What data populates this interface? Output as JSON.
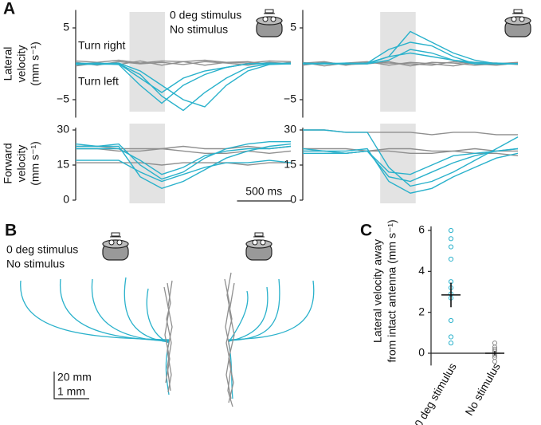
{
  "panel_labels": [
    "A",
    "B",
    "C"
  ],
  "legend": [
    {
      "name": "0 deg stimulus",
      "color": "#29b1cb"
    },
    {
      "name": "No stimulus",
      "color": "#8f8f8f"
    }
  ],
  "annotations": {
    "turn_right": "Turn right",
    "turn_left": "Turn left"
  },
  "y_labels": {
    "lateral": [
      "Lateral",
      "velocity",
      "(mm s⁻¹)"
    ],
    "forward": [
      "Forward",
      "velocity",
      "(mm s⁻¹)"
    ]
  },
  "panel_b": {
    "scale_y": "20 mm",
    "scale_x": "1 mm"
  },
  "chart_data": [
    {
      "type": "line",
      "x": [
        0,
        200,
        400,
        600,
        800,
        1000,
        1200,
        1400,
        1600,
        1800,
        2000
      ],
      "xlim": [
        0,
        2000
      ],
      "ylim": [
        -7.5,
        7.5
      ],
      "yticks": [
        5,
        {
          "value": -5,
          "label": "−5"
        }
      ],
      "shaded_interval": [
        500,
        830
      ],
      "series": [
        {
          "color": "#8f8f8f",
          "values": [
            0.2,
            -0.2,
            0.3,
            0,
            0.2,
            -0.1,
            0.3,
            0.1,
            -0.2,
            0.2,
            0
          ]
        },
        {
          "color": "#8f8f8f",
          "values": [
            -0.3,
            0.1,
            -0.1,
            0.4,
            -0.2,
            0.3,
            -0.2,
            0.2,
            0.3,
            -0.1,
            0.2
          ]
        },
        {
          "color": "#8f8f8f",
          "values": [
            0.4,
            0.2,
            0.5,
            0.1,
            0.4,
            0.3,
            0.5,
            0.2,
            0.1,
            0.4,
            0.3
          ]
        },
        {
          "color": "#29b1cb",
          "values": [
            0,
            0.1,
            0,
            -2,
            -4,
            -2,
            -1,
            -0.5,
            0,
            0.1,
            0
          ]
        },
        {
          "color": "#29b1cb",
          "values": [
            0.1,
            0,
            -0.1,
            -3,
            -5.5,
            -3,
            -1.5,
            -0.5,
            0,
            0,
            0.1
          ]
        },
        {
          "color": "#29b1cb",
          "values": [
            0,
            -0.1,
            0,
            -1.5,
            -4.5,
            -6.5,
            -4,
            -2,
            -0.5,
            0,
            0
          ]
        },
        {
          "color": "#29b1cb",
          "values": [
            -0.1,
            0,
            0.1,
            -1,
            -3,
            -5,
            -6,
            -3,
            -1,
            -0.1,
            0
          ]
        }
      ]
    },
    {
      "type": "line",
      "x": [
        0,
        200,
        400,
        600,
        800,
        1000,
        1200,
        1400,
        1600,
        1800,
        2000
      ],
      "xlim": [
        0,
        2000
      ],
      "ylim": [
        -7.5,
        7.5
      ],
      "yticks": [
        5,
        {
          "value": -5,
          "label": "−5"
        }
      ],
      "shaded_interval": [
        720,
        1050
      ],
      "series": [
        {
          "color": "#8f8f8f",
          "values": [
            0.2,
            -0.3,
            0.1,
            0.3,
            -0.2,
            0.2,
            0,
            -0.3,
            0.2,
            0.1,
            -0.1
          ]
        },
        {
          "color": "#8f8f8f",
          "values": [
            -0.2,
            0.2,
            -0.1,
            0,
            0.3,
            -0.3,
            0.2,
            0.1,
            -0.2,
            0,
            0.2
          ]
        },
        {
          "color": "#8f8f8f",
          "values": [
            0.1,
            0.3,
            -0.2,
            0.2,
            0.1,
            0,
            -0.2,
            0.3,
            0,
            -0.2,
            0.1
          ]
        },
        {
          "color": "#29b1cb",
          "values": [
            0,
            0,
            0.1,
            0,
            1,
            4.5,
            3,
            1.5,
            0.5,
            0,
            0
          ]
        },
        {
          "color": "#29b1cb",
          "values": [
            0,
            0.1,
            0,
            0.1,
            2,
            3,
            2.5,
            1,
            0,
            0,
            0
          ]
        },
        {
          "color": "#29b1cb",
          "values": [
            0.1,
            0,
            0,
            0,
            0.5,
            2,
            1.5,
            0.5,
            0,
            0.1,
            0
          ]
        },
        {
          "color": "#29b1cb",
          "values": [
            0,
            0,
            0,
            0.1,
            1,
            1.5,
            1,
            0.5,
            0.2,
            0,
            0
          ]
        }
      ]
    },
    {
      "type": "line",
      "x": [
        0,
        200,
        400,
        600,
        800,
        1000,
        1200,
        1400,
        1600,
        1800,
        2000
      ],
      "xlim": [
        0,
        2000
      ],
      "ylim": [
        0,
        31
      ],
      "yticks": [
        0,
        15,
        30
      ],
      "shaded_interval": [
        500,
        830
      ],
      "scale_bar": {
        "value": 500,
        "label": "500 ms"
      },
      "series": [
        {
          "color": "#8f8f8f",
          "values": [
            22,
            22,
            21,
            21,
            22,
            21,
            20,
            20,
            21,
            20,
            21
          ]
        },
        {
          "color": "#8f8f8f",
          "values": [
            23,
            23,
            22,
            22,
            22,
            23,
            22,
            22,
            23,
            22,
            23
          ]
        },
        {
          "color": "#8f8f8f",
          "values": [
            16,
            16,
            16,
            16,
            15,
            16,
            16,
            16,
            15,
            16,
            16
          ]
        },
        {
          "color": "#29b1cb",
          "values": [
            23,
            23,
            23,
            10,
            5,
            8,
            13,
            18,
            21,
            23,
            24
          ]
        },
        {
          "color": "#29b1cb",
          "values": [
            24,
            23,
            24,
            15,
            9,
            12,
            18,
            22,
            24,
            25,
            25
          ]
        },
        {
          "color": "#29b1cb",
          "values": [
            17,
            17,
            17,
            12,
            8,
            11,
            14,
            16,
            16,
            17,
            16
          ]
        },
        {
          "color": "#29b1cb",
          "values": [
            22,
            22,
            22,
            17,
            11,
            14,
            19,
            21,
            22,
            22,
            23
          ]
        }
      ]
    },
    {
      "type": "line",
      "x": [
        0,
        200,
        400,
        600,
        800,
        1000,
        1200,
        1400,
        1600,
        1800,
        2000
      ],
      "xlim": [
        0,
        2000
      ],
      "ylim": [
        0,
        31
      ],
      "yticks": [
        0,
        15,
        30
      ],
      "shaded_interval": [
        720,
        1050
      ],
      "series": [
        {
          "color": "#8f8f8f",
          "values": [
            30,
            30,
            29,
            29,
            29,
            29,
            28,
            29,
            29,
            28,
            28
          ]
        },
        {
          "color": "#8f8f8f",
          "values": [
            21,
            21,
            20,
            21,
            21,
            20,
            20,
            21,
            20,
            20,
            19
          ]
        },
        {
          "color": "#8f8f8f",
          "values": [
            22,
            22,
            22,
            21,
            22,
            22,
            21,
            21,
            22,
            21,
            21
          ]
        },
        {
          "color": "#29b1cb",
          "values": [
            22,
            21,
            21,
            22,
            8,
            3,
            5,
            10,
            14,
            18,
            20
          ]
        },
        {
          "color": "#29b1cb",
          "values": [
            30,
            30,
            29,
            29,
            14,
            6,
            8,
            12,
            17,
            22,
            27
          ]
        },
        {
          "color": "#29b1cb",
          "values": [
            21,
            21,
            20,
            21,
            10,
            8,
            12,
            16,
            19,
            21,
            22
          ]
        },
        {
          "color": "#29b1cb",
          "values": [
            20,
            20,
            20,
            21,
            12,
            11,
            15,
            19,
            20,
            21,
            22
          ]
        }
      ]
    },
    {
      "type": "strip",
      "categories": [
        "0 deg stimulus",
        "No stimulus"
      ],
      "ylim": [
        -0.6,
        6.2
      ],
      "yticks": [
        0,
        2,
        4,
        6
      ],
      "series": [
        {
          "color": "#29b1cb",
          "values": [
            6.0,
            5.6,
            5.2,
            4.6,
            3.5,
            3.2,
            2.9,
            2.7,
            1.6,
            0.8,
            0.5
          ]
        },
        {
          "color": "#8f8f8f",
          "values": [
            0.5,
            0.3,
            0.2,
            0.1,
            0,
            -0.1,
            -0.2,
            -0.4
          ]
        }
      ],
      "means": [
        2.85,
        0
      ],
      "sem": [
        0.6,
        0.1
      ],
      "y_label": [
        "Lateral velocity away",
        "from intact antenna (mm s⁻¹)"
      ]
    }
  ]
}
